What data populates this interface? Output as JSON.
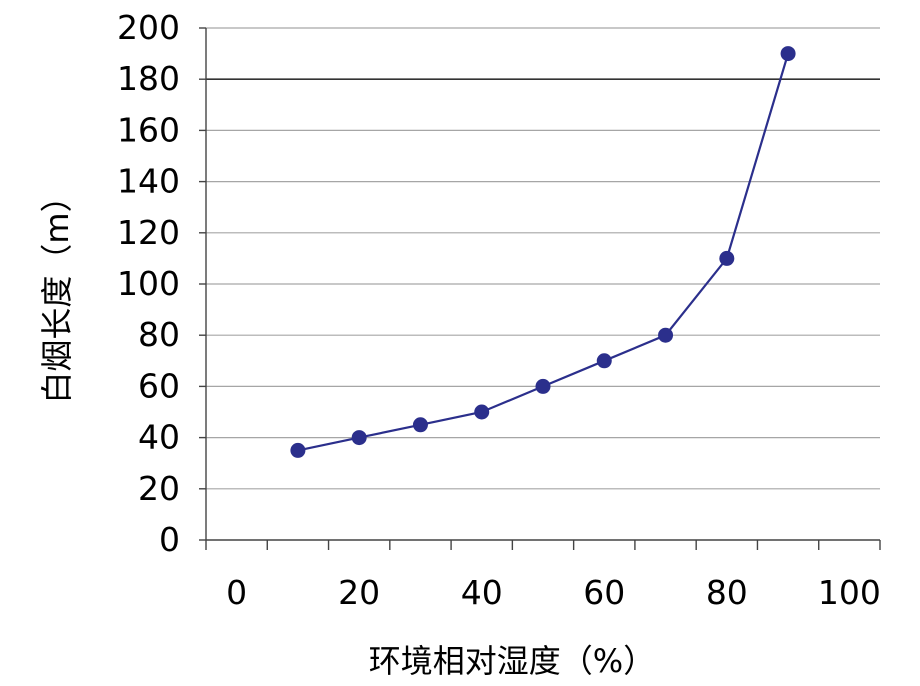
{
  "chart_data": {
    "type": "line",
    "xlabel": "环境相对湿度（%）",
    "ylabel": "白烟长度（m）",
    "xlim": [
      -5,
      105
    ],
    "ylim": [
      0,
      200
    ],
    "x_ticks": [
      0,
      20,
      40,
      60,
      80,
      100
    ],
    "y_ticks": [
      0,
      20,
      40,
      60,
      80,
      100,
      120,
      140,
      160,
      180,
      200
    ],
    "grid": "horizontal",
    "series": [
      {
        "x": [
          10,
          20,
          30,
          40,
          50,
          60,
          70,
          80,
          90
        ],
        "y": [
          35,
          40,
          45,
          50,
          60,
          70,
          80,
          110,
          190
        ]
      }
    ],
    "colors": {
      "series": "#2b2f8c",
      "grid": "#a6a6a6",
      "highlight_grid": "#333333"
    }
  }
}
